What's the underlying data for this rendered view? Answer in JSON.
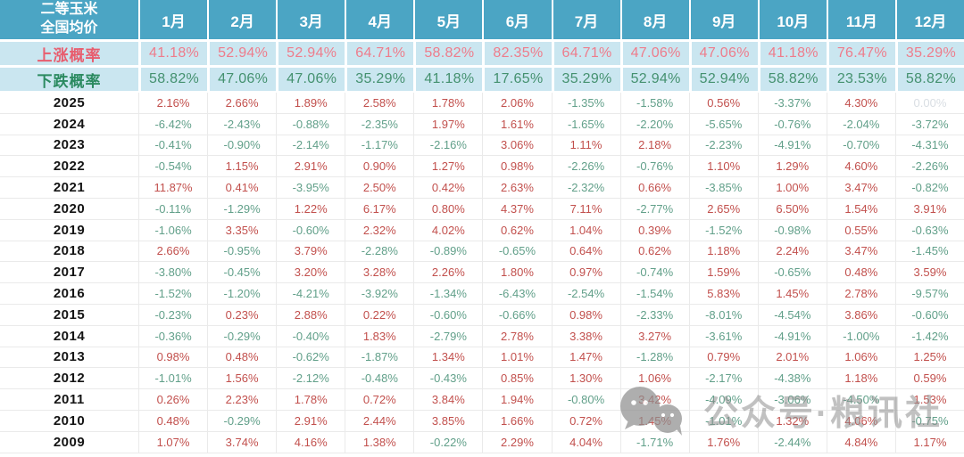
{
  "chart_data": {
    "type": "table",
    "title": "二等玉米全国均价",
    "title_lines": [
      "二等玉米",
      "全国均价"
    ],
    "columns": [
      "1月",
      "2月",
      "3月",
      "4月",
      "5月",
      "6月",
      "7月",
      "8月",
      "9月",
      "10月",
      "11月",
      "12月"
    ],
    "rise_probability": {
      "label": "上涨概率",
      "values_pct": [
        41.18,
        52.94,
        52.94,
        64.71,
        58.82,
        82.35,
        64.71,
        47.06,
        47.06,
        41.18,
        76.47,
        35.29
      ]
    },
    "fall_probability": {
      "label": "下跌概率",
      "values_pct": [
        58.82,
        47.06,
        47.06,
        35.29,
        41.18,
        17.65,
        35.29,
        52.94,
        52.94,
        58.82,
        23.53,
        58.82
      ]
    },
    "years": [
      {
        "year": "2025",
        "values_pct": [
          2.16,
          2.66,
          1.89,
          2.58,
          1.78,
          2.06,
          -1.35,
          -1.58,
          0.56,
          -3.37,
          4.3,
          0.0
        ],
        "no_data_months": [
          12
        ]
      },
      {
        "year": "2024",
        "values_pct": [
          -6.42,
          -2.43,
          -0.88,
          -2.35,
          1.97,
          1.61,
          -1.65,
          -2.2,
          -5.65,
          -0.76,
          -2.04,
          -3.72
        ]
      },
      {
        "year": "2023",
        "values_pct": [
          -0.41,
          -0.9,
          -2.14,
          -1.17,
          -2.16,
          3.06,
          1.11,
          2.18,
          -2.23,
          -4.91,
          -0.7,
          -4.31
        ]
      },
      {
        "year": "2022",
        "values_pct": [
          -0.54,
          1.15,
          2.91,
          0.9,
          1.27,
          0.98,
          -2.26,
          -0.76,
          1.1,
          1.29,
          4.6,
          -2.26
        ]
      },
      {
        "year": "2021",
        "values_pct": [
          11.87,
          0.41,
          -3.95,
          2.5,
          0.42,
          2.63,
          -2.32,
          0.66,
          -3.85,
          1.0,
          3.47,
          -0.82
        ]
      },
      {
        "year": "2020",
        "values_pct": [
          -0.11,
          -1.29,
          1.22,
          6.17,
          0.8,
          4.37,
          7.11,
          -2.77,
          2.65,
          6.5,
          1.54,
          3.91
        ]
      },
      {
        "year": "2019",
        "values_pct": [
          -1.06,
          3.35,
          -0.6,
          2.32,
          4.02,
          0.62,
          1.04,
          0.39,
          -1.52,
          -0.98,
          0.55,
          -0.63
        ]
      },
      {
        "year": "2018",
        "values_pct": [
          2.66,
          -0.95,
          3.79,
          -2.28,
          -0.89,
          -0.65,
          0.64,
          0.62,
          1.18,
          2.24,
          3.47,
          -1.45
        ]
      },
      {
        "year": "2017",
        "values_pct": [
          -3.8,
          -0.45,
          3.2,
          3.28,
          2.26,
          1.8,
          0.97,
          -0.74,
          1.59,
          -0.65,
          0.48,
          3.59
        ]
      },
      {
        "year": "2016",
        "values_pct": [
          -1.52,
          -1.2,
          -4.21,
          -3.92,
          -1.34,
          -6.43,
          -2.54,
          -1.54,
          5.83,
          1.45,
          2.78,
          -9.57
        ]
      },
      {
        "year": "2015",
        "values_pct": [
          -0.23,
          0.23,
          2.88,
          0.22,
          -0.6,
          -0.66,
          0.98,
          -2.33,
          -8.01,
          -4.54,
          3.86,
          -0.6
        ]
      },
      {
        "year": "2014",
        "values_pct": [
          -0.36,
          -0.29,
          -0.4,
          1.83,
          -2.79,
          2.78,
          3.38,
          3.27,
          -3.61,
          -4.91,
          -1.0,
          -1.42
        ]
      },
      {
        "year": "2013",
        "values_pct": [
          0.98,
          0.48,
          -0.62,
          -1.87,
          1.34,
          1.01,
          1.47,
          -1.28,
          0.79,
          2.01,
          1.06,
          1.25
        ]
      },
      {
        "year": "2012",
        "values_pct": [
          -1.01,
          1.56,
          -2.12,
          -0.48,
          -0.43,
          0.85,
          1.3,
          1.06,
          -2.17,
          -4.38,
          1.18,
          0.59
        ]
      },
      {
        "year": "2011",
        "values_pct": [
          0.26,
          2.23,
          1.78,
          0.72,
          3.84,
          1.94,
          -0.8,
          3.42,
          -4.09,
          -3.06,
          -4.5,
          1.53
        ]
      },
      {
        "year": "2010",
        "values_pct": [
          0.48,
          -0.29,
          2.91,
          2.44,
          3.85,
          1.66,
          0.72,
          1.45,
          -1.01,
          1.32,
          4.06,
          -0.75
        ]
      },
      {
        "year": "2009",
        "values_pct": [
          1.07,
          3.74,
          4.16,
          1.38,
          -0.22,
          2.29,
          4.04,
          -1.71,
          1.76,
          -2.44,
          4.84,
          1.17
        ]
      }
    ]
  },
  "watermark": {
    "text": "公众号·粮讯社",
    "icon": "wechat-icon"
  },
  "colors": {
    "header_bg": "#4BA5C4",
    "prob_bg": "#CAE6F0",
    "rise_label": "#E85D6E",
    "rise_text": "#EE7C8B",
    "fall_label": "#2B8A60",
    "fall_text": "#44916F",
    "pos": "#C2504D",
    "neg": "#62A08A",
    "muted": "#D9DEE3",
    "border": "#EAEAEA",
    "watermark": "#8F8F8F"
  }
}
